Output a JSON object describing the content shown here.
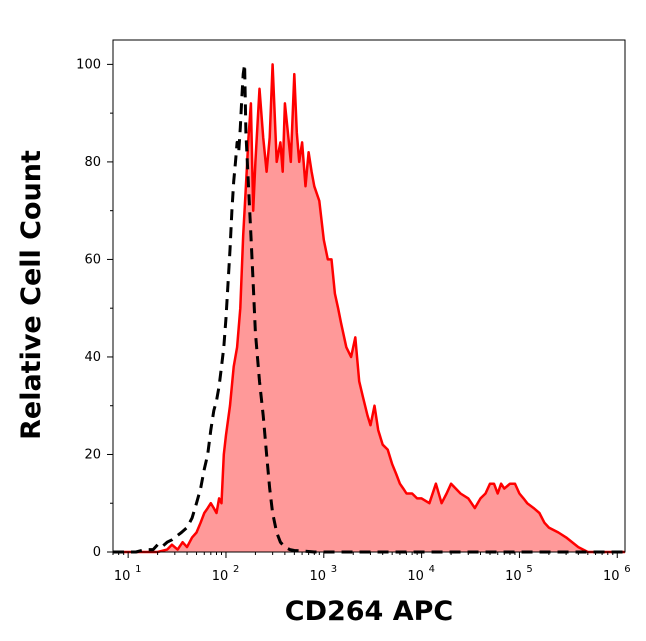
{
  "chart_data": {
    "type": "area",
    "title": "",
    "xlabel": "CD264 APC",
    "ylabel": "Relative Cell Count",
    "x_scale": "log",
    "xlim": [
      7,
      1200000
    ],
    "ylim": [
      0,
      105
    ],
    "grid": false,
    "x_ticks": [
      {
        "value": 10,
        "base": "10",
        "exp": "1"
      },
      {
        "value": 100,
        "base": "10",
        "exp": "2"
      },
      {
        "value": 1000,
        "base": "10",
        "exp": "3"
      },
      {
        "value": 10000,
        "base": "10",
        "exp": "4"
      },
      {
        "value": 100000,
        "base": "10",
        "exp": "5"
      },
      {
        "value": 1000000,
        "base": "10",
        "exp": "6"
      }
    ],
    "y_ticks": [
      {
        "value": 0,
        "label": "0"
      },
      {
        "value": 20,
        "label": "20"
      },
      {
        "value": 40,
        "label": "40"
      },
      {
        "value": 60,
        "label": "60"
      },
      {
        "value": 80,
        "label": "80"
      },
      {
        "value": 100,
        "label": "100"
      }
    ],
    "series": [
      {
        "style": "filled",
        "color": "#ff0000",
        "fill": "#ff9999",
        "x": [
          7,
          20,
          25,
          28,
          32,
          36,
          40,
          45,
          50,
          55,
          60,
          65,
          70,
          75,
          80,
          85,
          90,
          95,
          100,
          110,
          120,
          130,
          140,
          150,
          160,
          170,
          180,
          190,
          200,
          220,
          240,
          260,
          280,
          300,
          330,
          360,
          380,
          400,
          430,
          460,
          500,
          530,
          560,
          600,
          650,
          700,
          750,
          800,
          900,
          1000,
          1100,
          1200,
          1300,
          1400,
          1500,
          1700,
          1900,
          2100,
          2300,
          2500,
          2800,
          3000,
          3300,
          3600,
          4000,
          4500,
          5000,
          5500,
          6000,
          6500,
          7000,
          8000,
          9000,
          10000,
          12000,
          14000,
          16000,
          18000,
          20000,
          25000,
          30000,
          35000,
          40000,
          45000,
          50000,
          55000,
          60000,
          65000,
          70000,
          80000,
          90000,
          100000,
          110000,
          120000,
          140000,
          160000,
          180000,
          200000,
          250000,
          300000,
          400000,
          500000,
          1200000
        ],
        "y": [
          0,
          0,
          0.5,
          1.5,
          0.5,
          2,
          1,
          3,
          4,
          6,
          8,
          9,
          10,
          9,
          8,
          11,
          10,
          20,
          24,
          30,
          38,
          42,
          50,
          65,
          75,
          85,
          92,
          70,
          80,
          95,
          85,
          78,
          85,
          100,
          80,
          84,
          78,
          92,
          86,
          80,
          98,
          86,
          80,
          84,
          75,
          82,
          78,
          75,
          72,
          64,
          60,
          60,
          53,
          50,
          47,
          42,
          40,
          44,
          35,
          32,
          28,
          26,
          30,
          25,
          22,
          21,
          18,
          16,
          14,
          13,
          12,
          12,
          11,
          11,
          10,
          14,
          10,
          12,
          14,
          12,
          11,
          9,
          11,
          12,
          14,
          14,
          12,
          14,
          13,
          14,
          14,
          12,
          11,
          10,
          9,
          8,
          6,
          5,
          4,
          3,
          1,
          0,
          0
        ]
      },
      {
        "style": "dashed",
        "color": "#000000",
        "x": [
          7,
          12,
          15,
          18,
          20,
          22,
          25,
          28,
          30,
          35,
          40,
          45,
          50,
          55,
          60,
          65,
          70,
          75,
          80,
          85,
          90,
          95,
          100,
          105,
          110,
          115,
          120,
          125,
          130,
          135,
          140,
          145,
          150,
          155,
          160,
          170,
          180,
          190,
          200,
          220,
          240,
          260,
          280,
          300,
          330,
          360,
          400,
          450,
          500,
          600,
          800,
          1000,
          1200000
        ],
        "y": [
          0,
          0,
          0.5,
          0.5,
          1.5,
          1,
          2,
          2.5,
          3,
          4,
          5,
          7,
          10,
          13,
          17,
          20,
          25,
          29,
          31,
          34,
          38,
          42,
          48,
          55,
          62,
          70,
          76,
          80,
          84,
          82,
          87,
          93,
          98,
          100,
          86,
          75,
          65,
          55,
          45,
          35,
          28,
          20,
          13,
          8,
          4,
          2,
          1,
          0.5,
          0.3,
          0.2,
          0,
          0,
          0
        ]
      }
    ]
  }
}
